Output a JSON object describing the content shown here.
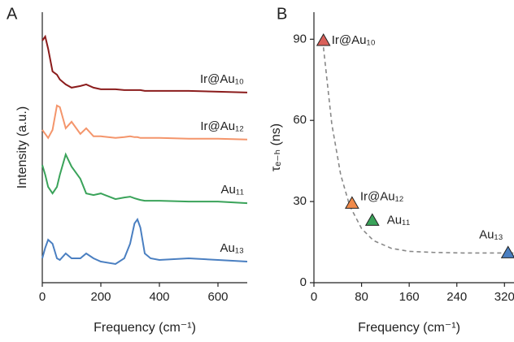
{
  "chart_data": [
    {
      "type": "line",
      "panel": "A",
      "xlabel": "Frequency (cm⁻¹)",
      "ylabel": "Intensity (a.u.)",
      "xlim": [
        0,
        700
      ],
      "xticks": [
        0,
        200,
        400,
        600
      ],
      "ylim": [
        0,
        10
      ],
      "x": [
        0,
        10,
        20,
        35,
        50,
        60,
        80,
        100,
        130,
        150,
        175,
        200,
        250,
        280,
        300,
        315,
        325,
        335,
        350,
        370,
        400,
        500,
        600,
        700
      ],
      "series": [
        {
          "name": "Ir@Au₁₀",
          "color": "#8b1c1c",
          "values": [
            8.95,
            9.1,
            8.65,
            7.81,
            7.69,
            7.51,
            7.33,
            7.21,
            7.27,
            7.33,
            7.21,
            7.15,
            7.15,
            7.12,
            7.12,
            7.12,
            7.12,
            7.12,
            7.09,
            7.09,
            7.09,
            7.09,
            7.06,
            7.03
          ]
        },
        {
          "name": "Ir@Au₁₂",
          "color": "#f4956b",
          "values": [
            5.65,
            5.5,
            5.35,
            5.65,
            6.55,
            6.49,
            5.71,
            5.95,
            5.5,
            5.71,
            5.41,
            5.41,
            5.35,
            5.38,
            5.41,
            5.38,
            5.38,
            5.35,
            5.35,
            5.35,
            5.35,
            5.32,
            5.32,
            5.29
          ]
        },
        {
          "name": "Au₁₁",
          "color": "#3aa35a",
          "values": [
            4.35,
            3.99,
            3.54,
            3.3,
            3.54,
            3.99,
            4.74,
            4.29,
            3.84,
            3.3,
            3.24,
            3.3,
            3.09,
            3.15,
            3.18,
            3.12,
            3.09,
            3.06,
            3.03,
            3.03,
            3.03,
            3.0,
            3.0,
            2.94
          ]
        },
        {
          "name": "Au₁₃",
          "color": "#4a7fc1",
          "values": [
            0.9,
            1.29,
            1.59,
            1.44,
            0.9,
            0.84,
            1.08,
            0.9,
            0.9,
            1.08,
            0.9,
            0.78,
            0.69,
            0.9,
            1.44,
            2.19,
            2.34,
            2.04,
            1.08,
            0.9,
            0.84,
            0.9,
            0.84,
            0.78
          ]
        }
      ]
    },
    {
      "type": "scatter",
      "panel": "B",
      "xlabel": "Frequency (cm⁻¹)",
      "ylabel": "τₑ₋ₕ (ns)",
      "xlim": [
        0,
        336
      ],
      "xticks": [
        0,
        80,
        160,
        240,
        320
      ],
      "ylim": [
        0,
        100
      ],
      "yticks": [
        0,
        30,
        60,
        90
      ],
      "labels": [
        "Ir@Au₁₀",
        "Ir@Au₁₂",
        "Au₁₁",
        "Au₁₃"
      ],
      "x": [
        16,
        64,
        98,
        326
      ],
      "values": [
        89.5,
        29.3,
        23,
        11
      ],
      "colors": [
        "#d9605a",
        "#f08a4b",
        "#3aa35a",
        "#4a7fc1"
      ],
      "fit": {
        "color": "#888888",
        "x": [
          16,
          30,
          45,
          60,
          80,
          100,
          130,
          160,
          200,
          250,
          320,
          335
        ],
        "values": [
          87,
          58.6,
          39.9,
          28.5,
          20.0,
          15.6,
          12.7,
          11.6,
          11.2,
          11.0,
          11,
          11
        ]
      }
    }
  ]
}
